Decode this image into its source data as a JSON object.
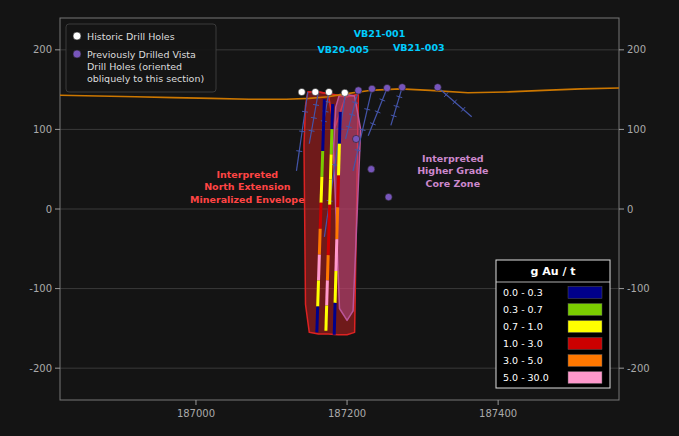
{
  "chart_data": {
    "type": "section",
    "xlim": [
      186820,
      187560
    ],
    "ylim": [
      -240,
      240
    ],
    "xticks": [
      187000,
      187200,
      187400
    ],
    "yticks": [
      -200,
      -100,
      0,
      100,
      200
    ],
    "y2lim": [
      -240,
      240
    ],
    "y2ticks": [
      -200,
      -100,
      0,
      100,
      200
    ],
    "grid": true,
    "legend": "upper left",
    "series": [
      {
        "type": "polygon",
        "color": "#dd2222",
        "x": [
          187148,
          187162,
          187175,
          187188,
          187198,
          187208,
          187215,
          187215,
          187210,
          187200,
          187188,
          187175,
          187162,
          187150,
          187145,
          187143,
          187145,
          187148
        ],
        "values": [
          147,
          147,
          145,
          143,
          141,
          142,
          144,
          144,
          -155,
          -158,
          -158,
          -157,
          -157,
          -155,
          -120,
          80,
          130,
          147
        ]
      },
      {
        "type": "line",
        "color": "#dd2222",
        "x": [
          187148,
          187162,
          187175,
          187185,
          187198,
          187215
        ],
        "values": [
          147,
          147,
          145,
          143,
          141,
          144
        ]
      },
      {
        "type": "line",
        "color": "#dd2222",
        "x": [
          187175,
          187183,
          187198
        ],
        "values": [
          145,
          100,
          141
        ]
      },
      {
        "type": "polygon",
        "color": "#bb5599",
        "x": [
          187190,
          187200,
          187210,
          187218,
          187216,
          187208,
          187200,
          187190,
          187182,
          187185,
          187190
        ],
        "values": [
          144,
          144,
          142,
          100,
          55,
          -128,
          -140,
          -125,
          75,
          128,
          144
        ]
      },
      {
        "type": "line",
        "color": "#cc7700",
        "x": [
          186820,
          186870,
          186920,
          186970,
          187020,
          187070,
          187120,
          187150,
          187175,
          187200,
          187230,
          187270,
          187310,
          187360,
          187410,
          187460,
          187510,
          187560
        ],
        "values": [
          143,
          142,
          141,
          140,
          139,
          138,
          138,
          139,
          141,
          145,
          149,
          151,
          149,
          146,
          147,
          149,
          151,
          152
        ]
      },
      {
        "type": "line",
        "color": "#4455aa",
        "marker": "tick",
        "x": [
          187148,
          187133
        ],
        "values": [
          147,
          48
        ]
      },
      {
        "type": "line",
        "color": "#4455aa",
        "marker": "tick",
        "x": [
          187162,
          187150
        ],
        "values": [
          147,
          82
        ]
      },
      {
        "type": "line",
        "color": "#4455aa",
        "marker": "tick",
        "x": [
          187176,
          187167
        ],
        "values": [
          147,
          98
        ]
      },
      {
        "type": "line",
        "color": "#4455aa",
        "marker": "tick",
        "x": [
          187198,
          187170
        ],
        "values": [
          146,
          -35
        ]
      },
      {
        "type": "line",
        "color": "#4455aa",
        "marker": "tick",
        "x": [
          187215,
          187198
        ],
        "values": [
          149,
          88
        ]
      },
      {
        "type": "line",
        "color": "#4455aa",
        "marker": "tick",
        "x": [
          187233,
          187208
        ],
        "values": [
          151,
          48
        ]
      },
      {
        "type": "line",
        "color": "#4455aa",
        "marker": "tick",
        "x": [
          187253,
          187228
        ],
        "values": [
          152,
          92
        ]
      },
      {
        "type": "line",
        "color": "#4455aa",
        "marker": "tick",
        "x": [
          187273,
          187258
        ],
        "values": [
          153,
          105
        ]
      },
      {
        "type": "line",
        "color": "#4455aa",
        "marker": "tick",
        "x": [
          187320,
          187365
        ],
        "values": [
          153,
          116
        ]
      },
      {
        "type": "assay",
        "x": [
          187170,
          187160
        ],
        "values": [
          138,
          -155
        ],
        "colors": [
          "#00008b",
          "#00008b",
          "#7acc00",
          "#ffff00",
          "#cc0000",
          "#ff7700",
          "#ff99cc",
          "#ffff00",
          "#00008b"
        ]
      },
      {
        "type": "assay",
        "x": [
          187181,
          187172
        ],
        "values": [
          132,
          -153
        ],
        "colors": [
          "#00008b",
          "#7acc00",
          "#ffff00",
          "#ffff00",
          "#cc0000",
          "#cc0000",
          "#ff7700",
          "#ff99cc",
          "#ffff00"
        ]
      },
      {
        "type": "assay",
        "x": [
          187191,
          187183
        ],
        "values": [
          122,
          -158
        ],
        "colors": [
          "#00008b",
          "#ffff00",
          "#cc0000",
          "#ff7700",
          "#ff99cc",
          "#ffff00",
          "#00008b"
        ]
      },
      {
        "type": "scatter",
        "name": "Historic Drill Holes",
        "color": "white",
        "x": [
          187140,
          187158,
          187176,
          187197
        ],
        "values": [
          147,
          147,
          147,
          146
        ]
      },
      {
        "type": "scatter",
        "name": "Previously Drilled Vista\nDrill Holes (oriented\nobliquely to this section)",
        "color": "#7755bb",
        "x": [
          187215,
          187233,
          187253,
          187273,
          187320,
          187212,
          187232,
          187255
        ],
        "values": [
          149,
          151,
          152,
          153,
          153,
          88,
          50,
          15
        ]
      }
    ],
    "annotations": [
      {
        "text": "VB21-001",
        "x": 187243,
        "y": 220,
        "color": "#00ccff"
      },
      {
        "text": "VB20-005",
        "x": 187195,
        "y": 200,
        "color": "#00ccff"
      },
      {
        "text": "VB21-003",
        "x": 187295,
        "y": 203,
        "color": "#00ccff"
      },
      {
        "text": "Interpreted\nNorth Extension\nMineralized Envelope",
        "x": 187068,
        "y": 28,
        "color": "#ff4444"
      },
      {
        "text": "Interpreted\nHigher Grade\nCore Zone",
        "x": 187340,
        "y": 48,
        "color": "#cc88cc"
      }
    ],
    "color_key": {
      "title": "g Au / t",
      "entries": [
        {
          "label": "0.0 - 0.3",
          "color": "#00008b"
        },
        {
          "label": "0.3 - 0.7",
          "color": "#7acc00"
        },
        {
          "label": "0.7 - 1.0",
          "color": "#ffff00"
        },
        {
          "label": "1.0 - 3.0",
          "color": "#cc0000"
        },
        {
          "label": "3.0 - 5.0",
          "color": "#ff7700"
        },
        {
          "label": "5.0 - 30.0",
          "color": "#ff99cc"
        }
      ]
    }
  }
}
